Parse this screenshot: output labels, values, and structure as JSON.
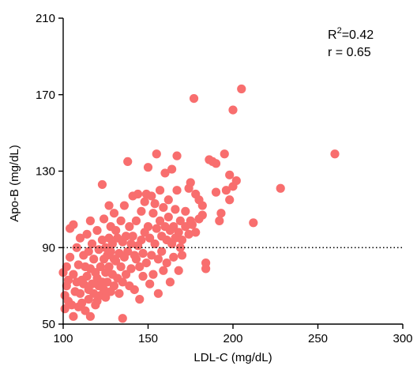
{
  "chart_data": {
    "type": "scatter",
    "xlabel": "LDL-C (mg/dL)",
    "ylabel": "Apo-B (mg/dL)",
    "xlim": [
      100,
      300
    ],
    "ylim": [
      50,
      210
    ],
    "x_ticks": [
      100,
      150,
      200,
      250,
      300
    ],
    "y_ticks": [
      50,
      90,
      130,
      170,
      210
    ],
    "x_tick_labels": [
      "100",
      "150",
      "200",
      "250",
      "300"
    ],
    "y_tick_labels": [
      "50",
      "90",
      "130",
      "170",
      "210"
    ],
    "reference_line": {
      "y": 90,
      "style": "dotted"
    },
    "annotation": {
      "r2_label": "R",
      "r2_sup": "2",
      "r2_value": "=0.42",
      "r_text": "r = 0.65"
    },
    "colors": {
      "points": "#F86E6E",
      "axis": "#000000",
      "reference_line": "#000000"
    },
    "grid": false,
    "points": [
      [
        100,
        77
      ],
      [
        101,
        65
      ],
      [
        101,
        58
      ],
      [
        102,
        80
      ],
      [
        102,
        70
      ],
      [
        103,
        73
      ],
      [
        103,
        62
      ],
      [
        104,
        100
      ],
      [
        104,
        85
      ],
      [
        105,
        60
      ],
      [
        106,
        102
      ],
      [
        106,
        76
      ],
      [
        106,
        54
      ],
      [
        107,
        67
      ],
      [
        108,
        90
      ],
      [
        108,
        72
      ],
      [
        109,
        81
      ],
      [
        109,
        59
      ],
      [
        110,
        95
      ],
      [
        110,
        66
      ],
      [
        111,
        73
      ],
      [
        111,
        61
      ],
      [
        112,
        86
      ],
      [
        112,
        71
      ],
      [
        113,
        80
      ],
      [
        113,
        57
      ],
      [
        114,
        97
      ],
      [
        114,
        75
      ],
      [
        115,
        88
      ],
      [
        115,
        68
      ],
      [
        115,
        63
      ],
      [
        116,
        104
      ],
      [
        116,
        79
      ],
      [
        116,
        54
      ],
      [
        117,
        92
      ],
      [
        117,
        71
      ],
      [
        118,
        84
      ],
      [
        118,
        66
      ],
      [
        119,
        77
      ],
      [
        119,
        60
      ],
      [
        120,
        99
      ],
      [
        120,
        74
      ],
      [
        120,
        62
      ],
      [
        121,
        89
      ],
      [
        121,
        70
      ],
      [
        122,
        80
      ],
      [
        122,
        65
      ],
      [
        123,
        123
      ],
      [
        123,
        94
      ],
      [
        123,
        72
      ],
      [
        124,
        105
      ],
      [
        124,
        84
      ],
      [
        124,
        68
      ],
      [
        125,
        90
      ],
      [
        125,
        77
      ],
      [
        125,
        64
      ],
      [
        126,
        86
      ],
      [
        126,
        72
      ],
      [
        127,
        112
      ],
      [
        127,
        95
      ],
      [
        127,
        80
      ],
      [
        128,
        101
      ],
      [
        128,
        88
      ],
      [
        128,
        67
      ],
      [
        129,
        92
      ],
      [
        129,
        76
      ],
      [
        130,
        108
      ],
      [
        130,
        84
      ],
      [
        130,
        70
      ],
      [
        131,
        99
      ],
      [
        131,
        83
      ],
      [
        132,
        95
      ],
      [
        132,
        74
      ],
      [
        133,
        87
      ],
      [
        133,
        66
      ],
      [
        134,
        104
      ],
      [
        134,
        80
      ],
      [
        135,
        93
      ],
      [
        135,
        72
      ],
      [
        135,
        53
      ],
      [
        136,
        112
      ],
      [
        136,
        85
      ],
      [
        137,
        96
      ],
      [
        137,
        76
      ],
      [
        138,
        135
      ],
      [
        138,
        88
      ],
      [
        139,
        101
      ],
      [
        139,
        70
      ],
      [
        140,
        92
      ],
      [
        140,
        79
      ],
      [
        141,
        117
      ],
      [
        141,
        96
      ],
      [
        142,
        86
      ],
      [
        142,
        68
      ],
      [
        143,
        104
      ],
      [
        143,
        84
      ],
      [
        144,
        118
      ],
      [
        144,
        91
      ],
      [
        145,
        80
      ],
      [
        145,
        63
      ],
      [
        146,
        109
      ],
      [
        146,
        94
      ],
      [
        147,
        87
      ],
      [
        147,
        75
      ],
      [
        148,
        114
      ],
      [
        148,
        98
      ],
      [
        149,
        118
      ],
      [
        149,
        82
      ],
      [
        150,
        132
      ],
      [
        150,
        101
      ],
      [
        151,
        71
      ],
      [
        151,
        95
      ],
      [
        152,
        117
      ],
      [
        152,
        86
      ],
      [
        153,
        108
      ],
      [
        153,
        76
      ],
      [
        154,
        92
      ],
      [
        154,
        113
      ],
      [
        155,
        139
      ],
      [
        155,
        100
      ],
      [
        156,
        84
      ],
      [
        156,
        66
      ],
      [
        157,
        120
      ],
      [
        157,
        104
      ],
      [
        158,
        96
      ],
      [
        158,
        88
      ],
      [
        159,
        111
      ],
      [
        159,
        78
      ],
      [
        160,
        129
      ],
      [
        160,
        101
      ],
      [
        161,
        94
      ],
      [
        161,
        82
      ],
      [
        162,
        115
      ],
      [
        162,
        106
      ],
      [
        163,
        99
      ],
      [
        163,
        72
      ],
      [
        164,
        131
      ],
      [
        164,
        92
      ],
      [
        165,
        101
      ],
      [
        165,
        85
      ],
      [
        166,
        110
      ],
      [
        166,
        95
      ],
      [
        167,
        120
      ],
      [
        167,
        138
      ],
      [
        168,
        98
      ],
      [
        168,
        78
      ],
      [
        169,
        104
      ],
      [
        169,
        90
      ],
      [
        170,
        94
      ],
      [
        170,
        86
      ],
      [
        172,
        109
      ],
      [
        172,
        101
      ],
      [
        174,
        121
      ],
      [
        174,
        97
      ],
      [
        175,
        124
      ],
      [
        175,
        104
      ],
      [
        176,
        102
      ],
      [
        177,
        168
      ],
      [
        178,
        118
      ],
      [
        178,
        98
      ],
      [
        180,
        115
      ],
      [
        180,
        105
      ],
      [
        182,
        112
      ],
      [
        182,
        107
      ],
      [
        184,
        82
      ],
      [
        184,
        79
      ],
      [
        186,
        136
      ],
      [
        188,
        135
      ],
      [
        190,
        134
      ],
      [
        190,
        119
      ],
      [
        192,
        104
      ],
      [
        193,
        108
      ],
      [
        195,
        139
      ],
      [
        196,
        120
      ],
      [
        198,
        128
      ],
      [
        198,
        115
      ],
      [
        200,
        162
      ],
      [
        200,
        122
      ],
      [
        202,
        125
      ],
      [
        205,
        173
      ],
      [
        212,
        103
      ],
      [
        228,
        121
      ],
      [
        260,
        139
      ]
    ]
  }
}
